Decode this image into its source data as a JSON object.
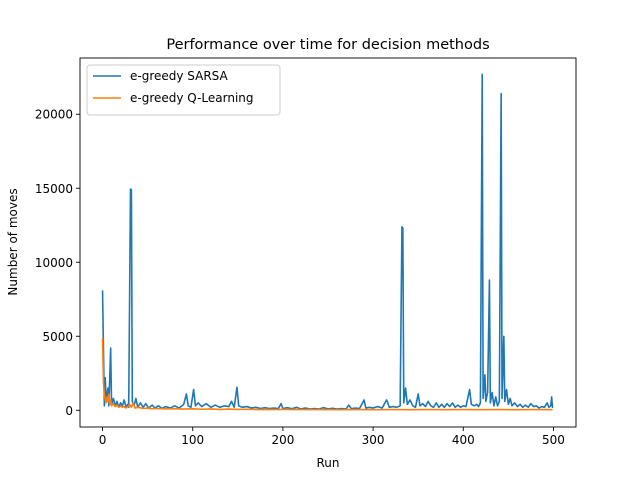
{
  "chart_data": {
    "type": "line",
    "title": "Performance over time for decision methods",
    "xlabel": "Run",
    "ylabel": "Number of moves",
    "xlim": [
      -25,
      525
    ],
    "ylim": [
      -1130,
      23800
    ],
    "xticks": [
      0,
      100,
      200,
      300,
      400,
      500
    ],
    "yticks": [
      0,
      5000,
      10000,
      15000,
      20000
    ],
    "legend_position": "top-left",
    "grid": false,
    "series": [
      {
        "name": "e-greedy SARSA",
        "color": "#1f77b4",
        "points": [
          [
            0,
            8100
          ],
          [
            2,
            300
          ],
          [
            3,
            2200
          ],
          [
            4,
            600
          ],
          [
            6,
            1500
          ],
          [
            7,
            300
          ],
          [
            9,
            4200
          ],
          [
            10,
            400
          ],
          [
            12,
            800
          ],
          [
            14,
            300
          ],
          [
            16,
            600
          ],
          [
            18,
            200
          ],
          [
            20,
            500
          ],
          [
            22,
            300
          ],
          [
            24,
            700
          ],
          [
            26,
            200
          ],
          [
            28,
            400
          ],
          [
            29,
            200
          ],
          [
            31,
            14950
          ],
          [
            32,
            14900
          ],
          [
            33,
            600
          ],
          [
            35,
            300
          ],
          [
            37,
            800
          ],
          [
            39,
            200
          ],
          [
            42,
            500
          ],
          [
            45,
            200
          ],
          [
            48,
            450
          ],
          [
            51,
            150
          ],
          [
            55,
            350
          ],
          [
            58,
            150
          ],
          [
            62,
            300
          ],
          [
            66,
            120
          ],
          [
            70,
            250
          ],
          [
            75,
            150
          ],
          [
            80,
            300
          ],
          [
            85,
            150
          ],
          [
            90,
            400
          ],
          [
            93,
            1100
          ],
          [
            95,
            300
          ],
          [
            98,
            200
          ],
          [
            101,
            1400
          ],
          [
            103,
            300
          ],
          [
            106,
            500
          ],
          [
            110,
            250
          ],
          [
            115,
            450
          ],
          [
            120,
            200
          ],
          [
            125,
            350
          ],
          [
            130,
            200
          ],
          [
            135,
            300
          ],
          [
            140,
            250
          ],
          [
            143,
            600
          ],
          [
            146,
            200
          ],
          [
            149,
            1550
          ],
          [
            151,
            300
          ],
          [
            155,
            200
          ],
          [
            160,
            250
          ],
          [
            165,
            150
          ],
          [
            170,
            200
          ],
          [
            175,
            120
          ],
          [
            180,
            180
          ],
          [
            185,
            120
          ],
          [
            190,
            150
          ],
          [
            195,
            120
          ],
          [
            198,
            450
          ],
          [
            200,
            120
          ],
          [
            205,
            180
          ],
          [
            210,
            100
          ],
          [
            215,
            200
          ],
          [
            220,
            90
          ],
          [
            225,
            150
          ],
          [
            230,
            80
          ],
          [
            235,
            120
          ],
          [
            240,
            80
          ],
          [
            245,
            180
          ],
          [
            250,
            90
          ],
          [
            255,
            130
          ],
          [
            260,
            80
          ],
          [
            265,
            120
          ],
          [
            270,
            80
          ],
          [
            273,
            350
          ],
          [
            276,
            100
          ],
          [
            280,
            150
          ],
          [
            285,
            120
          ],
          [
            290,
            700
          ],
          [
            292,
            150
          ],
          [
            296,
            200
          ],
          [
            300,
            150
          ],
          [
            305,
            250
          ],
          [
            310,
            150
          ],
          [
            315,
            700
          ],
          [
            318,
            200
          ],
          [
            322,
            250
          ],
          [
            326,
            200
          ],
          [
            330,
            300
          ],
          [
            332,
            12400
          ],
          [
            333,
            12300
          ],
          [
            334,
            500
          ],
          [
            336,
            1500
          ],
          [
            338,
            400
          ],
          [
            341,
            700
          ],
          [
            344,
            300
          ],
          [
            347,
            200
          ],
          [
            350,
            1100
          ],
          [
            352,
            300
          ],
          [
            355,
            450
          ],
          [
            358,
            250
          ],
          [
            361,
            600
          ],
          [
            364,
            300
          ],
          [
            367,
            200
          ],
          [
            370,
            500
          ],
          [
            373,
            200
          ],
          [
            376,
            400
          ],
          [
            379,
            200
          ],
          [
            382,
            450
          ],
          [
            385,
            250
          ],
          [
            388,
            500
          ],
          [
            391,
            200
          ],
          [
            394,
            350
          ],
          [
            397,
            200
          ],
          [
            400,
            300
          ],
          [
            403,
            250
          ],
          [
            407,
            1400
          ],
          [
            409,
            400
          ],
          [
            412,
            300
          ],
          [
            415,
            400
          ],
          [
            417,
            250
          ],
          [
            419,
            500
          ],
          [
            421,
            22700
          ],
          [
            422,
            800
          ],
          [
            424,
            2400
          ],
          [
            425,
            600
          ],
          [
            427,
            1200
          ],
          [
            429,
            8800
          ],
          [
            430,
            500
          ],
          [
            432,
            1200
          ],
          [
            434,
            300
          ],
          [
            436,
            900
          ],
          [
            438,
            300
          ],
          [
            440,
            600
          ],
          [
            442,
            21400
          ],
          [
            443,
            800
          ],
          [
            445,
            5000
          ],
          [
            446,
            600
          ],
          [
            448,
            1400
          ],
          [
            450,
            400
          ],
          [
            452,
            800
          ],
          [
            454,
            300
          ],
          [
            457,
            500
          ],
          [
            460,
            250
          ],
          [
            463,
            400
          ],
          [
            466,
            200
          ],
          [
            469,
            350
          ],
          [
            472,
            200
          ],
          [
            475,
            450
          ],
          [
            478,
            250
          ],
          [
            481,
            300
          ],
          [
            484,
            150
          ],
          [
            487,
            250
          ],
          [
            490,
            200
          ],
          [
            493,
            500
          ],
          [
            495,
            200
          ],
          [
            497,
            300
          ],
          [
            498,
            900
          ],
          [
            499,
            150
          ]
        ]
      },
      {
        "name": "e-greedy Q-Learning",
        "color": "#ff7f0e",
        "points": [
          [
            0,
            4900
          ],
          [
            1,
            1800
          ],
          [
            2,
            1100
          ],
          [
            3,
            700
          ],
          [
            4,
            500
          ],
          [
            5,
            900
          ],
          [
            6,
            600
          ],
          [
            7,
            1100
          ],
          [
            8,
            400
          ],
          [
            9,
            700
          ],
          [
            10,
            300
          ],
          [
            12,
            450
          ],
          [
            14,
            250
          ],
          [
            16,
            350
          ],
          [
            18,
            200
          ],
          [
            20,
            300
          ],
          [
            22,
            200
          ],
          [
            24,
            250
          ],
          [
            26,
            150
          ],
          [
            28,
            250
          ],
          [
            30,
            400
          ],
          [
            32,
            200
          ],
          [
            34,
            500
          ],
          [
            36,
            150
          ],
          [
            40,
            200
          ],
          [
            45,
            120
          ],
          [
            50,
            150
          ],
          [
            55,
            100
          ],
          [
            60,
            120
          ],
          [
            70,
            90
          ],
          [
            80,
            110
          ],
          [
            90,
            80
          ],
          [
            100,
            100
          ],
          [
            110,
            70
          ],
          [
            120,
            90
          ],
          [
            130,
            60
          ],
          [
            140,
            80
          ],
          [
            150,
            60
          ],
          [
            160,
            70
          ],
          [
            170,
            50
          ],
          [
            180,
            60
          ],
          [
            190,
            50
          ],
          [
            200,
            55
          ],
          [
            220,
            45
          ],
          [
            240,
            50
          ],
          [
            260,
            40
          ],
          [
            280,
            45
          ],
          [
            300,
            40
          ],
          [
            320,
            45
          ],
          [
            340,
            40
          ],
          [
            360,
            45
          ],
          [
            380,
            40
          ],
          [
            400,
            45
          ],
          [
            420,
            40
          ],
          [
            440,
            45
          ],
          [
            460,
            40
          ],
          [
            480,
            45
          ],
          [
            499,
            40
          ]
        ]
      }
    ]
  }
}
